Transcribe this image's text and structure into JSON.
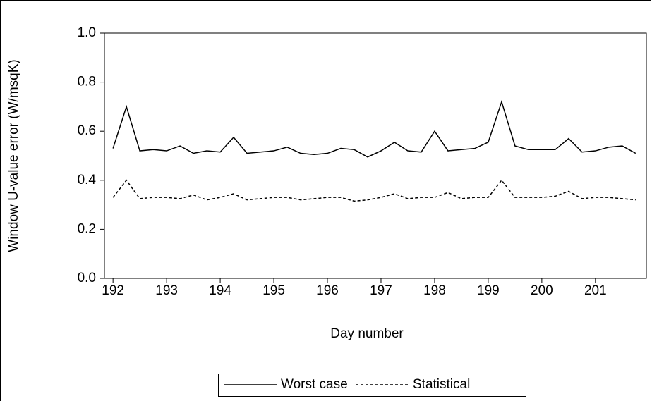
{
  "chart_data": {
    "type": "line",
    "ylabel": "Window U-value error (W/msqK)",
    "xlabel": "Day number",
    "x": [
      192,
      192.25,
      192.5,
      192.75,
      193,
      193.25,
      193.5,
      193.75,
      194,
      194.25,
      194.5,
      194.75,
      195,
      195.25,
      195.5,
      195.75,
      196,
      196.25,
      196.5,
      196.75,
      197,
      197.25,
      197.5,
      197.75,
      198,
      198.25,
      198.5,
      198.75,
      199,
      199.25,
      199.5,
      199.75,
      200,
      200.25,
      200.5,
      200.75,
      201,
      201.25,
      201.5,
      201.75
    ],
    "series": [
      {
        "name": "Worst case",
        "color": "#000000",
        "style": "solid",
        "values": [
          0.53,
          0.7,
          0.52,
          0.525,
          0.52,
          0.54,
          0.51,
          0.52,
          0.515,
          0.575,
          0.51,
          0.515,
          0.52,
          0.535,
          0.51,
          0.505,
          0.51,
          0.53,
          0.525,
          0.495,
          0.52,
          0.555,
          0.52,
          0.515,
          0.6,
          0.52,
          0.525,
          0.53,
          0.555,
          0.72,
          0.54,
          0.525,
          0.525,
          0.525,
          0.57,
          0.515,
          0.52,
          0.535,
          0.54,
          0.51
        ]
      },
      {
        "name": "Statistical",
        "color": "#000000",
        "style": "dashed",
        "values": [
          0.33,
          0.4,
          0.325,
          0.33,
          0.33,
          0.325,
          0.34,
          0.32,
          0.33,
          0.345,
          0.32,
          0.325,
          0.33,
          0.33,
          0.32,
          0.325,
          0.33,
          0.33,
          0.315,
          0.32,
          0.33,
          0.345,
          0.325,
          0.33,
          0.33,
          0.35,
          0.325,
          0.33,
          0.33,
          0.4,
          0.33,
          0.33,
          0.33,
          0.335,
          0.355,
          0.325,
          0.33,
          0.33,
          0.325,
          0.32
        ]
      }
    ],
    "xlim": [
      191.84,
      201.95
    ],
    "xticks": [
      192,
      193,
      194,
      195,
      196,
      197,
      198,
      199,
      200,
      201
    ],
    "ylim": [
      0,
      1
    ],
    "yticks": [
      {
        "value": 0,
        "label": "0.0"
      },
      0.2,
      0.4,
      0.6,
      0.8,
      {
        "value": 1,
        "label": "1.0"
      }
    ],
    "legend": "bottom"
  }
}
